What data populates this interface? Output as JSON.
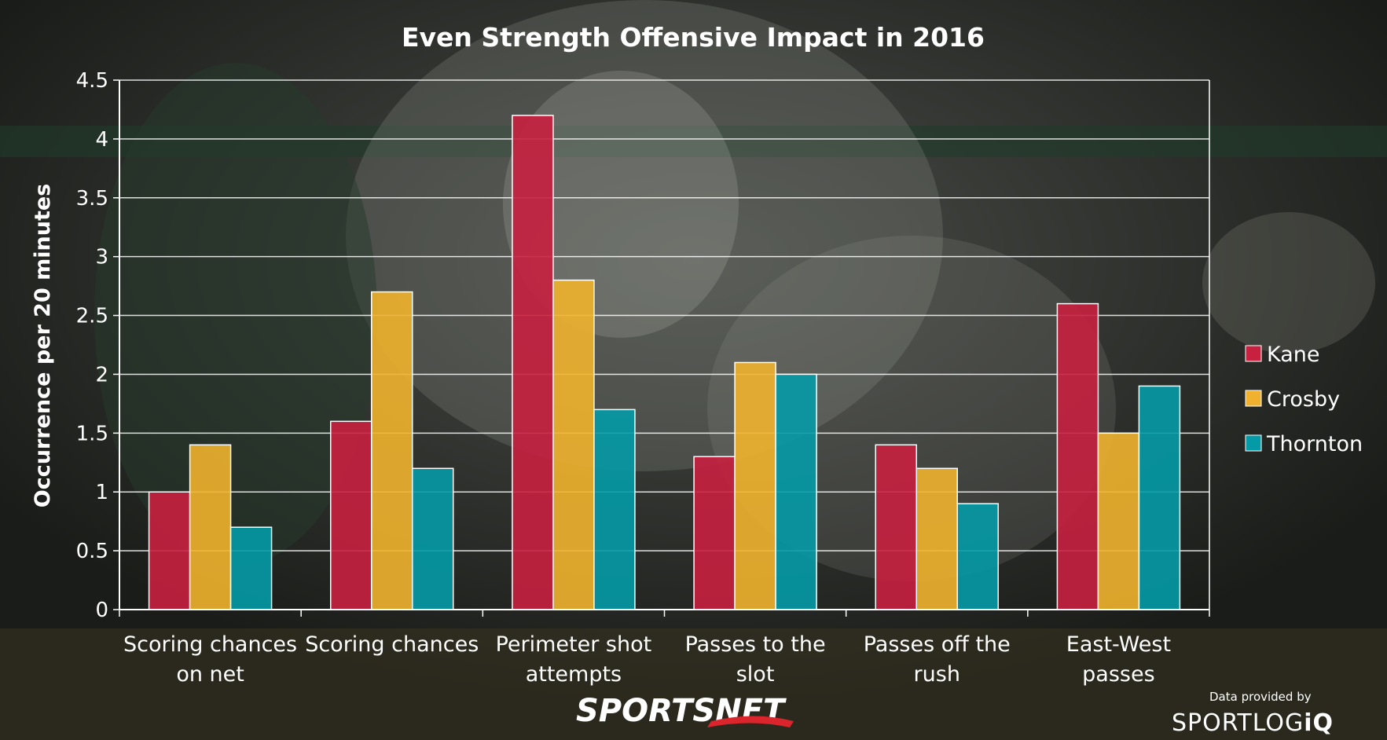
{
  "chart_data": {
    "type": "bar",
    "title": "Even Strength Offensive Impact in 2016",
    "ylabel": "Occurrence per 20 minutes",
    "xlabel": "",
    "ylim": [
      0,
      4.5
    ],
    "yticks": [
      "0",
      "0.5",
      "1",
      "1.5",
      "2",
      "2.5",
      "3",
      "3.5",
      "4",
      "4.5"
    ],
    "ytick_values": [
      0,
      0.5,
      1,
      1.5,
      2,
      2.5,
      3,
      3.5,
      4,
      4.5
    ],
    "grid": true,
    "legend_position": "right",
    "categories": [
      [
        "Scoring chances",
        "on net"
      ],
      [
        "Scoring chances"
      ],
      [
        "Perimeter shot",
        "attempts"
      ],
      [
        "Passes to the",
        "slot"
      ],
      [
        "Passes off the",
        "rush"
      ],
      [
        "East-West",
        "passes"
      ]
    ],
    "series": [
      {
        "name": "Kane",
        "color": "#c8203f",
        "values": [
          1.0,
          1.6,
          4.2,
          1.3,
          1.4,
          2.6
        ]
      },
      {
        "name": "Crosby",
        "color": "#f0b22e",
        "values": [
          1.4,
          2.7,
          2.8,
          2.1,
          1.2,
          1.5
        ]
      },
      {
        "name": "Thornton",
        "color": "#049aa6",
        "values": [
          0.7,
          1.2,
          1.7,
          2.0,
          0.9,
          1.9
        ]
      }
    ]
  },
  "branding": {
    "network": "SPORTSNET",
    "credit_prefix": "Data provided by",
    "provider_main": "SPORTLOG",
    "provider_suffix": "iQ"
  }
}
